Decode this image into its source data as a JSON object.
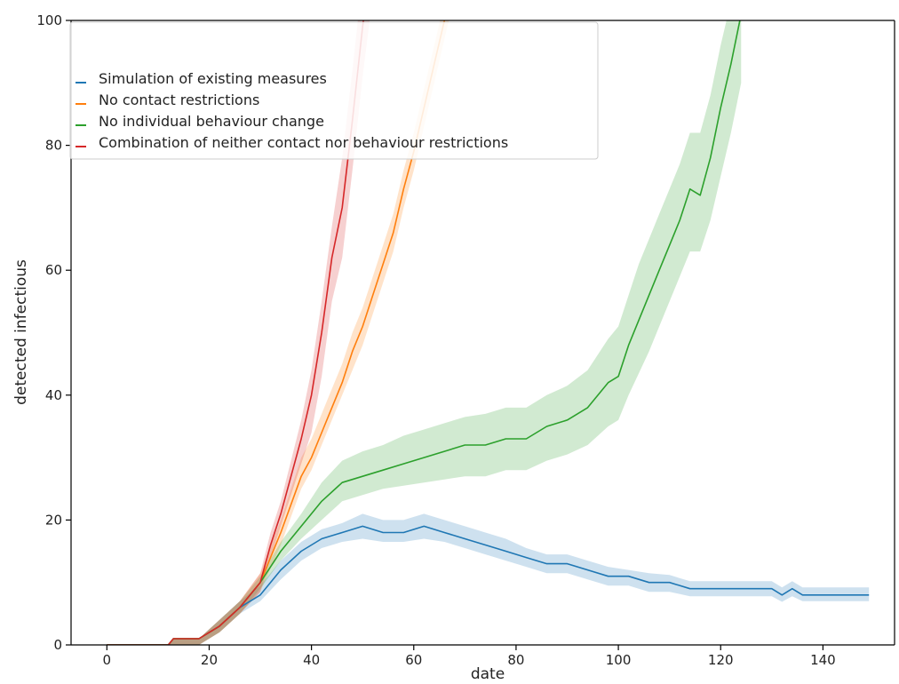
{
  "chart_data": {
    "type": "line",
    "title": "",
    "xlabel": "date",
    "ylabel": "detected infectious",
    "xlim": [
      -7,
      154
    ],
    "ylim": [
      0,
      100
    ],
    "xticks": [
      0,
      20,
      40,
      60,
      80,
      100,
      120,
      140
    ],
    "yticks": [
      0,
      20,
      40,
      60,
      80,
      100
    ],
    "grid": false,
    "legend_position": "top-left",
    "series": [
      {
        "name": "Simulation of existing measures",
        "color": "#1f77b4",
        "x": [
          0,
          12,
          13,
          18,
          22,
          26,
          30,
          34,
          38,
          42,
          46,
          50,
          54,
          58,
          62,
          66,
          70,
          74,
          78,
          82,
          86,
          90,
          94,
          98,
          102,
          106,
          110,
          114,
          118,
          122,
          126,
          130,
          132,
          134,
          136,
          140,
          144,
          149
        ],
        "y": [
          0,
          0,
          1,
          1,
          3,
          6,
          8,
          12,
          15,
          17,
          18,
          19,
          18,
          18,
          19,
          18,
          17,
          16,
          15,
          14,
          13,
          13,
          12,
          11,
          11,
          10,
          10,
          9,
          9,
          9,
          9,
          9,
          8,
          9,
          8,
          8,
          8,
          8
        ],
        "lower": [
          0,
          0,
          0,
          0,
          2,
          5,
          7,
          10.5,
          13.5,
          15.5,
          16.5,
          17,
          16.5,
          16.5,
          17,
          16.5,
          15.5,
          14.5,
          13.5,
          12.5,
          11.5,
          11.5,
          10.5,
          9.5,
          9.5,
          8.5,
          8.5,
          7.8,
          7.8,
          7.8,
          7.8,
          7.8,
          6.9,
          7.8,
          7,
          7,
          7,
          7
        ],
        "upper": [
          0,
          0,
          1,
          1,
          4,
          7,
          9.5,
          13.5,
          16.5,
          18.5,
          19.5,
          21,
          20,
          20,
          21,
          20,
          19,
          18,
          17,
          15.5,
          14.5,
          14.5,
          13.5,
          12.5,
          12,
          11.5,
          11.2,
          10.2,
          10.2,
          10.2,
          10.2,
          10.2,
          9.2,
          10.2,
          9.2,
          9.2,
          9.2,
          9.2
        ]
      },
      {
        "name": "No contact restrictions",
        "color": "#ff7f0e",
        "x": [
          0,
          12,
          13,
          18,
          22,
          26,
          30,
          34,
          38,
          40,
          42,
          44,
          46,
          48,
          50,
          52,
          54,
          56,
          58,
          60,
          62,
          64,
          66,
          68
        ],
        "y": [
          0,
          0,
          1,
          1,
          3,
          6,
          10,
          18,
          27,
          30,
          34,
          38,
          42,
          47,
          51,
          56,
          61,
          66,
          73,
          79,
          86,
          93,
          100,
          107
        ],
        "lower": [
          0,
          0,
          0,
          0,
          2,
          5,
          8.5,
          16,
          25,
          28,
          32,
          36,
          40,
          44,
          48,
          53,
          58,
          63,
          70,
          76,
          83,
          90,
          97,
          104
        ],
        "upper": [
          0,
          0,
          1,
          1,
          4,
          7,
          11.5,
          20,
          30,
          33,
          37,
          41,
          45,
          50,
          54,
          59,
          64,
          69,
          76,
          82,
          89,
          96,
          103,
          110
        ]
      },
      {
        "name": "No individual behaviour change",
        "color": "#2ca02c",
        "x": [
          0,
          12,
          13,
          18,
          22,
          26,
          30,
          34,
          38,
          42,
          46,
          50,
          54,
          58,
          62,
          66,
          70,
          74,
          78,
          82,
          86,
          90,
          94,
          98,
          100,
          102,
          104,
          106,
          108,
          110,
          112,
          114,
          116,
          118,
          120,
          122,
          124
        ],
        "y": [
          0,
          0,
          1,
          1,
          3,
          6,
          10,
          15,
          19,
          23,
          26,
          27,
          28,
          29,
          30,
          31,
          32,
          32,
          33,
          33,
          35,
          36,
          38,
          42,
          43,
          48,
          52,
          56,
          60,
          64,
          68,
          73,
          72,
          78,
          86,
          93,
          101
        ],
        "lower": [
          0,
          0,
          0,
          0,
          2,
          5,
          9,
          13.5,
          17,
          20,
          23,
          24,
          25,
          25.5,
          26,
          26.5,
          27,
          27,
          28,
          28,
          29.5,
          30.5,
          32,
          35,
          36,
          40,
          43.5,
          47,
          51,
          55,
          59,
          63,
          63,
          68,
          75,
          82,
          90
        ],
        "upper": [
          0,
          0,
          1,
          1,
          4,
          7,
          11,
          16.5,
          21,
          26,
          29.5,
          31,
          32,
          33.5,
          34.5,
          35.5,
          36.5,
          37,
          38,
          38,
          40,
          41.5,
          44,
          49,
          51,
          56,
          61,
          65,
          69,
          73,
          77,
          82,
          82,
          88,
          96,
          103,
          111
        ]
      },
      {
        "name": "Combination of neither contact nor behaviour restrictions",
        "color": "#d62728",
        "x": [
          0,
          12,
          13,
          18,
          22,
          26,
          30,
          32,
          34,
          36,
          38,
          40,
          42,
          44,
          46,
          48,
          50,
          52
        ],
        "y": [
          0,
          0,
          1,
          1,
          3,
          6,
          10,
          16,
          21,
          27,
          33,
          40,
          50,
          62,
          70,
          84,
          99,
          112
        ],
        "lower": [
          0,
          0,
          0,
          0,
          2,
          5,
          8.5,
          14,
          19,
          24,
          29,
          34,
          43,
          55,
          62,
          76,
          91,
          104
        ],
        "upper": [
          0,
          0,
          1,
          1,
          4,
          7,
          11.5,
          18,
          23,
          29.5,
          36,
          44,
          55,
          67,
          78,
          92,
          107,
          120
        ]
      }
    ]
  }
}
